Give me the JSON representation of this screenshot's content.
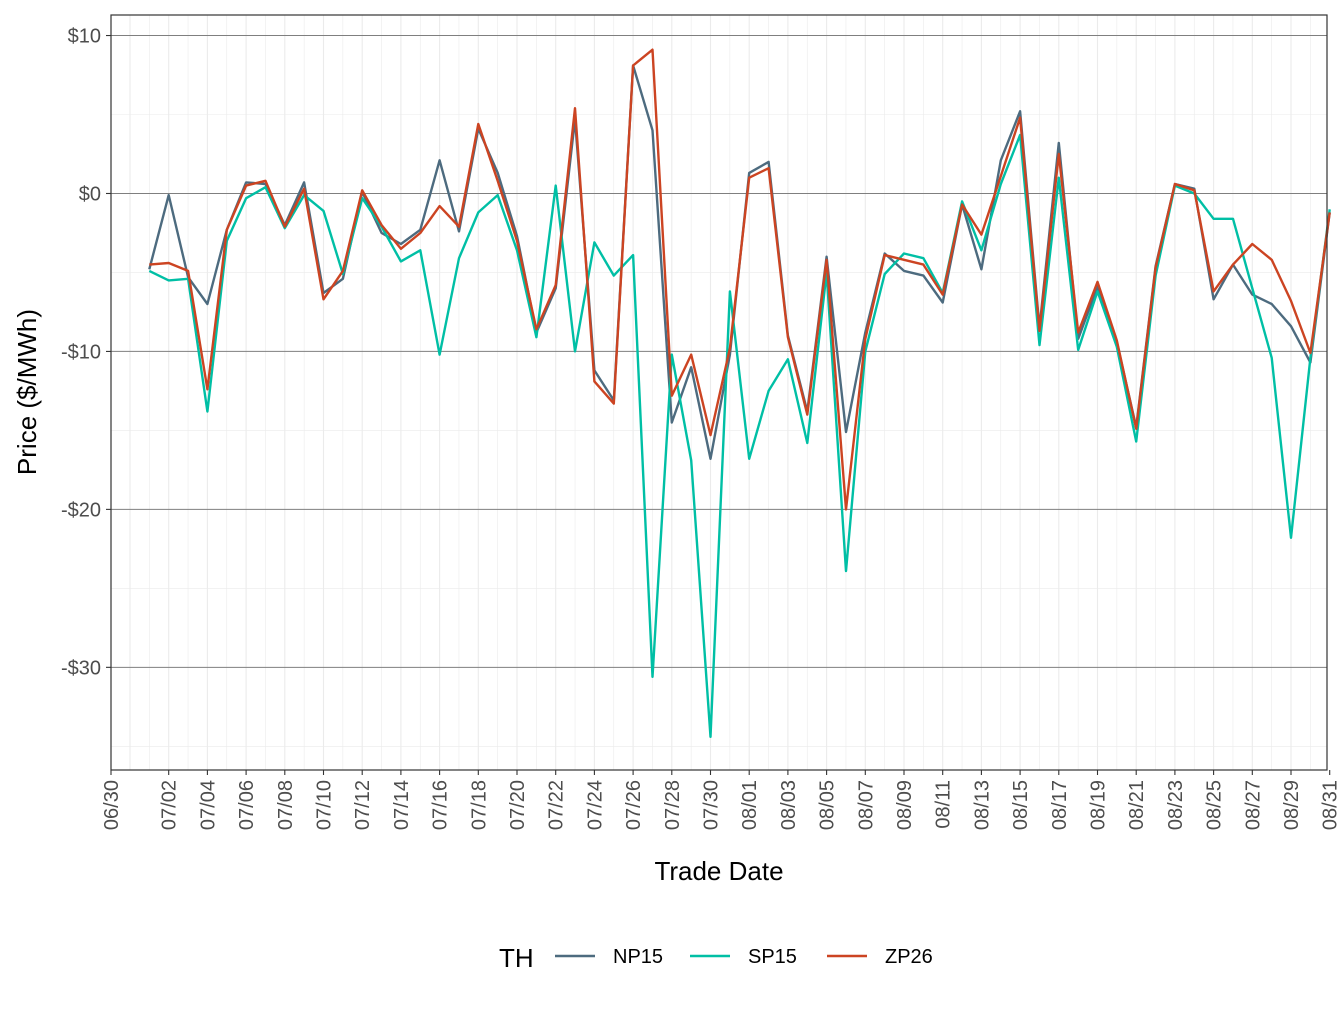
{
  "chart_data": {
    "type": "line",
    "title": "",
    "xlabel": "Trade Date",
    "ylabel": "Price ($/MWh)",
    "legend_title": "TH",
    "legend_position": "bottom",
    "grid": true,
    "xlim": [
      "2024-06-30",
      "2024-08-31"
    ],
    "ylim": [
      -36.5,
      11.3
    ],
    "x_tick_labels": [
      "06/30",
      "07/02",
      "07/04",
      "07/06",
      "07/08",
      "07/10",
      "07/12",
      "07/14",
      "07/16",
      "07/18",
      "07/20",
      "07/22",
      "07/24",
      "07/26",
      "07/28",
      "07/30",
      "08/01",
      "08/03",
      "08/05",
      "08/07",
      "08/09",
      "08/11",
      "08/13",
      "08/15",
      "08/17",
      "08/19",
      "08/21",
      "08/23",
      "08/25",
      "08/27",
      "08/29",
      "08/31"
    ],
    "y_ticks": [
      10,
      0,
      -10,
      -20,
      -30
    ],
    "y_tick_labels": [
      "$10",
      "$0",
      "-$10",
      "-$20",
      "-$30"
    ],
    "x": [
      "07/01",
      "07/02",
      "07/03",
      "07/04",
      "07/05",
      "07/06",
      "07/07",
      "07/08",
      "07/09",
      "07/10",
      "07/11",
      "07/12",
      "07/13",
      "07/14",
      "07/15",
      "07/16",
      "07/17",
      "07/18",
      "07/19",
      "07/20",
      "07/21",
      "07/22",
      "07/23",
      "07/24",
      "07/25",
      "07/26",
      "07/27",
      "07/28",
      "07/29",
      "07/30",
      "07/31",
      "08/01",
      "08/02",
      "08/03",
      "08/04",
      "08/05",
      "08/06",
      "08/07",
      "08/08",
      "08/09",
      "08/10",
      "08/11",
      "08/12",
      "08/13",
      "08/14",
      "08/15",
      "08/16",
      "08/17",
      "08/18",
      "08/19",
      "08/20",
      "08/21",
      "08/22",
      "08/23",
      "08/24",
      "08/25",
      "08/26",
      "08/27",
      "08/28",
      "08/29",
      "08/30",
      "08/31"
    ],
    "series": [
      {
        "name": "NP15",
        "color": "#4d6b7f",
        "values": [
          -4.8,
          -0.1,
          -5.3,
          -7.0,
          -2.3,
          0.7,
          0.6,
          -2.0,
          0.7,
          -6.3,
          -5.4,
          0.1,
          -2.5,
          -3.2,
          -2.3,
          2.1,
          -2.4,
          4.1,
          1.3,
          -2.7,
          -8.8,
          -6.0,
          4.7,
          -11.2,
          -13.1,
          8.1,
          4.0,
          -14.5,
          -11.0,
          -16.8,
          -10.2,
          1.3,
          2.0,
          -9.0,
          -13.8,
          -4.0,
          -15.1,
          -8.8,
          -3.8,
          -4.9,
          -5.2,
          -6.9,
          -0.7,
          -4.8,
          2.1,
          5.2,
          -8.5,
          3.2,
          -9.2,
          -5.9,
          -9.4,
          -14.8,
          -4.6,
          0.6,
          0.3,
          -6.7,
          -4.5,
          -6.4,
          -7.0,
          -8.4,
          -10.7,
          -1.2
        ]
      },
      {
        "name": "SP15",
        "color": "#00bfa5",
        "values": [
          -4.9,
          -5.5,
          -5.4,
          -13.8,
          -3.0,
          -0.3,
          0.4,
          -2.2,
          -0.1,
          -1.1,
          -5.1,
          -0.3,
          -2.1,
          -4.3,
          -3.6,
          -10.2,
          -4.1,
          -1.2,
          -0.1,
          -3.6,
          -9.1,
          0.5,
          -10.0,
          -3.1,
          -5.2,
          -3.9,
          -30.6,
          -10.2,
          -16.9,
          -34.4,
          -6.2,
          -16.8,
          -12.5,
          -10.5,
          -15.8,
          -5.0,
          -23.9,
          -10.0,
          -5.1,
          -3.8,
          -4.1,
          -6.3,
          -0.5,
          -3.6,
          0.6,
          3.7,
          -9.6,
          1.0,
          -9.9,
          -6.2,
          -9.7,
          -15.7,
          -5.2,
          0.5,
          0.0,
          -1.6,
          -1.6,
          -6.0,
          -10.4,
          -21.8,
          -10.4,
          -1.0
        ]
      },
      {
        "name": "ZP26",
        "color": "#cc4422",
        "values": [
          -4.5,
          -4.4,
          -4.9,
          -12.4,
          -2.3,
          0.5,
          0.8,
          -2.1,
          0.3,
          -6.7,
          -4.9,
          0.2,
          -2.0,
          -3.5,
          -2.5,
          -0.8,
          -2.1,
          4.4,
          0.8,
          -3.0,
          -8.6,
          -5.8,
          5.4,
          -11.9,
          -13.3,
          8.1,
          9.1,
          -12.8,
          -10.2,
          -15.3,
          -9.8,
          1.0,
          1.6,
          -9.1,
          -14.0,
          -4.2,
          -20.0,
          -9.2,
          -3.9,
          -4.2,
          -4.5,
          -6.4,
          -0.7,
          -2.6,
          1.1,
          4.8,
          -8.7,
          2.5,
          -8.8,
          -5.6,
          -9.3,
          -14.9,
          -4.7,
          0.6,
          0.2,
          -6.2,
          -4.5,
          -3.2,
          -4.2,
          -6.8,
          -10.1,
          -1.2
        ]
      }
    ]
  }
}
